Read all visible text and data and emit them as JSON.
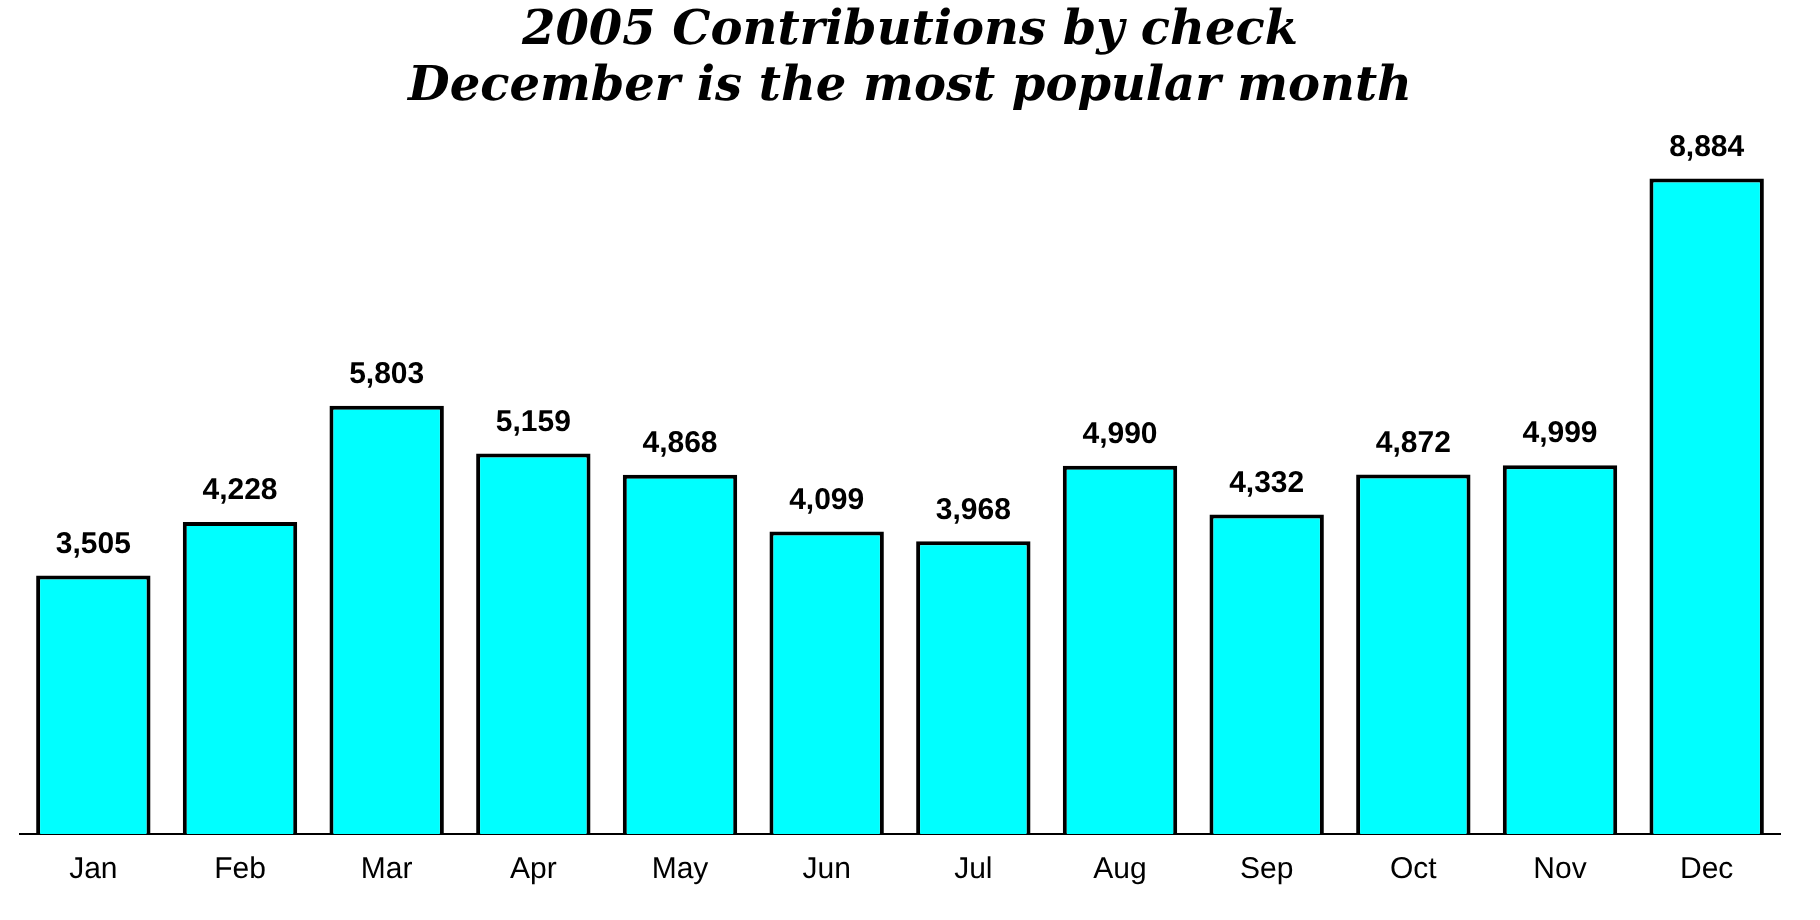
{
  "chart_data": {
    "type": "bar",
    "title": "2005 Contributions by check",
    "subtitle": "December is the most popular month",
    "categories": [
      "Jan",
      "Feb",
      "Mar",
      "Apr",
      "May",
      "Jun",
      "Jul",
      "Aug",
      "Sep",
      "Oct",
      "Nov",
      "Dec"
    ],
    "values": [
      3505,
      4228,
      5803,
      5159,
      4868,
      4099,
      3968,
      4990,
      4332,
      4872,
      4999,
      8884
    ],
    "value_labels": [
      "3,505",
      "4,228",
      "5,803",
      "5,159",
      "4,868",
      "4,099",
      "3,968",
      "4,990",
      "4,332",
      "4,872",
      "4,999",
      "8,884"
    ],
    "color": "#00ffff",
    "grid": false,
    "legend": false
  }
}
